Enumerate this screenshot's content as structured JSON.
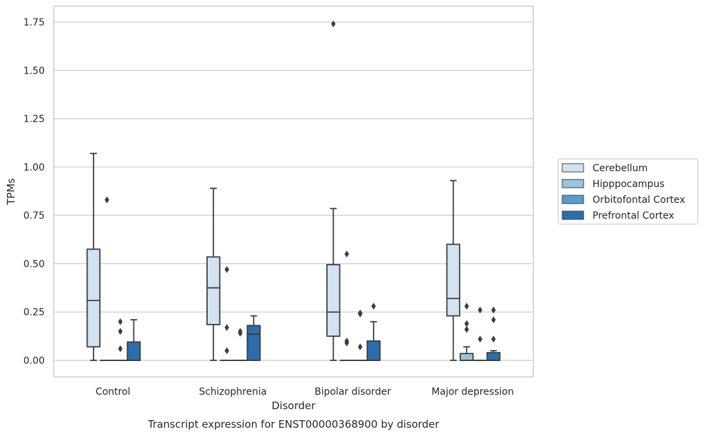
{
  "chart_data": {
    "type": "box",
    "xlabel": "Disorder",
    "ylabel": "TPMs",
    "caption": "Transcript expression for ENST00000368900 by disorder",
    "categories": [
      "Control",
      "Schizophrenia",
      "Bipolar disorder",
      "Major depression"
    ],
    "ylim": [
      -0.085,
      1.83
    ],
    "yticks": [
      0.0,
      0.25,
      0.5,
      0.75,
      1.0,
      1.25,
      1.5,
      1.75
    ],
    "ytick_labels": [
      "0.00",
      "0.25",
      "0.50",
      "0.75",
      "1.00",
      "1.25",
      "1.50",
      "1.75"
    ],
    "grid": "horizontal",
    "legend_position": "right",
    "series": [
      {
        "name": "Cerebellum",
        "color": "#d2e2f1",
        "boxes": [
          {
            "min": 0.0,
            "q1": 0.07,
            "median": 0.31,
            "q3": 0.575,
            "max": 1.07,
            "outliers": []
          },
          {
            "min": 0.0,
            "q1": 0.185,
            "median": 0.375,
            "q3": 0.535,
            "max": 0.89,
            "outliers": []
          },
          {
            "min": 0.0,
            "q1": 0.125,
            "median": 0.25,
            "q3": 0.495,
            "max": 0.785,
            "outliers": [
              1.74
            ]
          },
          {
            "min": 0.0,
            "q1": 0.23,
            "median": 0.32,
            "q3": 0.6,
            "max": 0.93,
            "outliers": []
          }
        ]
      },
      {
        "name": "Hipppocampus",
        "color": "#9cc4e0",
        "boxes": [
          {
            "min": 0.0,
            "q1": 0.0,
            "median": 0.0,
            "q3": 0.0,
            "max": 0.0,
            "outliers": [
              0.83
            ]
          },
          {
            "min": 0.0,
            "q1": 0.0,
            "median": 0.0,
            "q3": 0.0,
            "max": 0.0,
            "outliers": [
              0.47,
              0.17,
              0.05
            ]
          },
          {
            "min": 0.0,
            "q1": 0.0,
            "median": 0.0,
            "q3": 0.0,
            "max": 0.0,
            "outliers": [
              0.55,
              0.1,
              0.09
            ]
          },
          {
            "min": 0.0,
            "q1": 0.0,
            "median": 0.0,
            "q3": 0.035,
            "max": 0.07,
            "outliers": [
              0.28,
              0.19,
              0.16
            ]
          }
        ]
      },
      {
        "name": "Orbitofontal Cortex",
        "color": "#5b9cc8",
        "boxes": [
          {
            "min": 0.0,
            "q1": 0.0,
            "median": 0.0,
            "q3": 0.0,
            "max": 0.0,
            "outliers": [
              0.2,
              0.15,
              0.06
            ]
          },
          {
            "min": 0.0,
            "q1": 0.0,
            "median": 0.0,
            "q3": 0.0,
            "max": 0.0,
            "outliers": [
              0.15,
              0.14
            ]
          },
          {
            "min": 0.0,
            "q1": 0.0,
            "median": 0.0,
            "q3": 0.0,
            "max": 0.0,
            "outliers": [
              0.245,
              0.24,
              0.07
            ]
          },
          {
            "min": 0.0,
            "q1": 0.0,
            "median": 0.0,
            "q3": 0.0,
            "max": 0.0,
            "outliers": [
              0.26,
              0.11
            ]
          }
        ]
      },
      {
        "name": "Prefrontal Cortex",
        "color": "#2c6eab",
        "boxes": [
          {
            "min": 0.0,
            "q1": 0.0,
            "median": 0.0,
            "q3": 0.095,
            "max": 0.21,
            "outliers": []
          },
          {
            "min": 0.0,
            "q1": 0.0,
            "median": 0.135,
            "q3": 0.18,
            "max": 0.23,
            "outliers": []
          },
          {
            "min": 0.0,
            "q1": 0.0,
            "median": 0.0,
            "q3": 0.1,
            "max": 0.2,
            "outliers": [
              0.28
            ]
          },
          {
            "min": 0.0,
            "q1": 0.0,
            "median": 0.0,
            "q3": 0.04,
            "max": 0.05,
            "outliers": [
              0.26,
              0.21,
              0.11
            ]
          }
        ]
      }
    ]
  }
}
